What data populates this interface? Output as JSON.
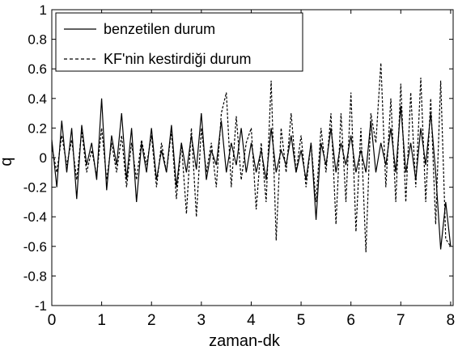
{
  "chart_data": {
    "type": "line",
    "title": "",
    "xlabel": "zaman-dk",
    "ylabel": "q",
    "xlim": [
      0,
      8.05
    ],
    "ylim": [
      -1,
      1
    ],
    "xticks": [
      "0",
      "1",
      "2",
      "3",
      "4",
      "5",
      "6",
      "7",
      "8"
    ],
    "yticks": [
      "1",
      "0.8",
      "0.6",
      "0.4",
      "0.2",
      "0",
      "-0.2",
      "-0.4",
      "-0.6",
      "-0.8",
      "-1"
    ],
    "grid": false,
    "legend_position": "top-left",
    "series": [
      {
        "name": "benzetilen durum",
        "style": "solid",
        "color": "#000000",
        "x": [
          0,
          0.1,
          0.2,
          0.3,
          0.4,
          0.5,
          0.6,
          0.7,
          0.8,
          0.9,
          1.0,
          1.1,
          1.2,
          1.3,
          1.4,
          1.5,
          1.6,
          1.7,
          1.8,
          1.9,
          2.0,
          2.1,
          2.2,
          2.3,
          2.4,
          2.5,
          2.6,
          2.7,
          2.8,
          2.9,
          3.0,
          3.1,
          3.2,
          3.3,
          3.4,
          3.5,
          3.6,
          3.7,
          3.8,
          3.9,
          4.0,
          4.1,
          4.2,
          4.3,
          4.4,
          4.5,
          4.6,
          4.7,
          4.8,
          4.9,
          5.0,
          5.1,
          5.2,
          5.3,
          5.4,
          5.5,
          5.6,
          5.7,
          5.8,
          5.9,
          6.0,
          6.1,
          6.2,
          6.3,
          6.4,
          6.5,
          6.6,
          6.7,
          6.8,
          6.9,
          7.0,
          7.1,
          7.2,
          7.3,
          7.4,
          7.5,
          7.6,
          7.7,
          7.8,
          7.9,
          8.0
        ],
        "values": [
          0.12,
          -0.2,
          0.25,
          -0.1,
          0.2,
          -0.28,
          0.22,
          -0.05,
          0.1,
          -0.15,
          0.4,
          -0.22,
          0.15,
          -0.05,
          0.3,
          -0.15,
          0.2,
          -0.3,
          0.1,
          -0.1,
          0.2,
          -0.15,
          0.05,
          -0.1,
          0.22,
          -0.2,
          0.1,
          -0.1,
          0.15,
          -0.08,
          0.3,
          -0.15,
          0.05,
          -0.05,
          0.25,
          -0.1,
          0.1,
          -0.05,
          0.2,
          -0.1,
          0.1,
          -0.1,
          0.05,
          -0.15,
          0.2,
          -0.1,
          0.05,
          -0.05,
          0.15,
          -0.1,
          0.05,
          -0.15,
          0.1,
          -0.42,
          0.1,
          -0.05,
          0.2,
          -0.1,
          0.1,
          -0.05,
          0.15,
          -0.1,
          0.05,
          -0.1,
          0.25,
          -0.1,
          0.1,
          -0.05,
          0.2,
          -0.1,
          0.35,
          -0.1,
          0.1,
          -0.15,
          0.2,
          -0.05,
          0.3,
          -0.1,
          -0.62,
          -0.3,
          -0.6
        ]
      },
      {
        "name": "KF'nin kestirdiği durum",
        "style": "dashed",
        "color": "#000000",
        "x": [
          0,
          0.1,
          0.2,
          0.3,
          0.4,
          0.5,
          0.6,
          0.7,
          0.8,
          0.9,
          1.0,
          1.1,
          1.2,
          1.3,
          1.4,
          1.5,
          1.6,
          1.7,
          1.8,
          1.9,
          2.0,
          2.1,
          2.2,
          2.3,
          2.4,
          2.5,
          2.6,
          2.7,
          2.8,
          2.9,
          3.0,
          3.1,
          3.2,
          3.3,
          3.4,
          3.5,
          3.6,
          3.7,
          3.8,
          3.9,
          4.0,
          4.1,
          4.2,
          4.3,
          4.4,
          4.5,
          4.6,
          4.7,
          4.8,
          4.9,
          5.0,
          5.1,
          5.2,
          5.3,
          5.4,
          5.5,
          5.6,
          5.7,
          5.8,
          5.9,
          6.0,
          6.1,
          6.2,
          6.3,
          6.4,
          6.5,
          6.6,
          6.7,
          6.8,
          6.9,
          7.0,
          7.1,
          7.2,
          7.3,
          7.4,
          7.5,
          7.6,
          7.7,
          7.8,
          7.9,
          8.0
        ],
        "values": [
          0.08,
          -0.1,
          0.15,
          -0.05,
          0.12,
          -0.15,
          0.18,
          -0.1,
          0.05,
          -0.12,
          0.2,
          -0.15,
          0.1,
          -0.1,
          0.15,
          -0.2,
          0.1,
          -0.15,
          0.12,
          -0.05,
          0.15,
          -0.2,
          0.1,
          -0.1,
          0.18,
          -0.28,
          0.1,
          -0.38,
          0.2,
          -0.4,
          0.2,
          -0.1,
          0.1,
          -0.2,
          0.3,
          0.44,
          -0.2,
          0.28,
          -0.15,
          0.1,
          0.2,
          -0.35,
          0.1,
          -0.3,
          0.52,
          -0.56,
          0.2,
          -0.1,
          0.3,
          -0.1,
          0.15,
          -0.2,
          0.1,
          -0.3,
          0.2,
          -0.1,
          0.3,
          -0.45,
          0.3,
          -0.3,
          0.44,
          -0.5,
          0.2,
          -0.64,
          0.3,
          0.1,
          0.64,
          -0.2,
          0.4,
          -0.3,
          0.5,
          -0.3,
          0.44,
          -0.2,
          0.54,
          -0.3,
          0.4,
          -0.45,
          0.52,
          -0.55,
          -0.6
        ]
      }
    ]
  }
}
